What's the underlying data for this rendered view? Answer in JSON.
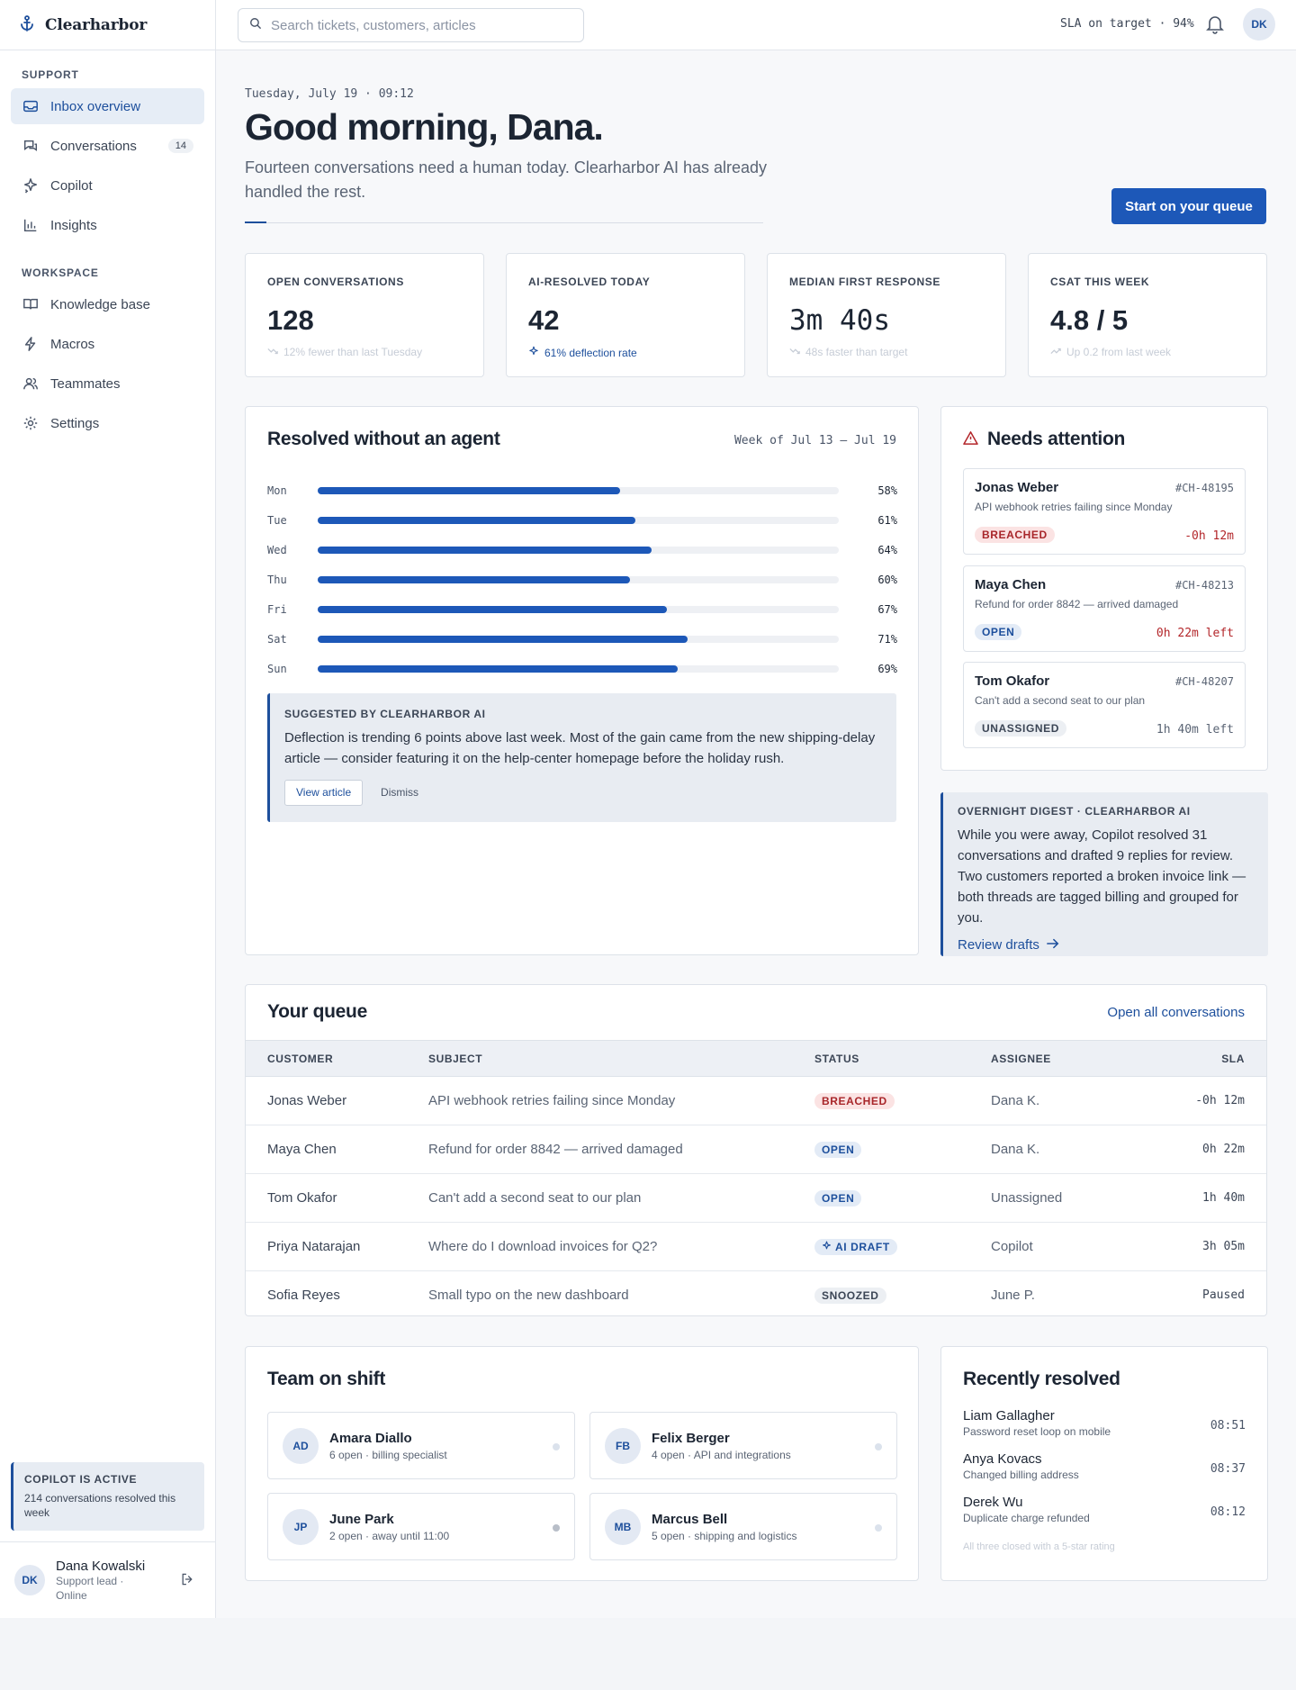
{
  "brand": {
    "name": "Clearharbor",
    "logo_icon": "anchor-icon"
  },
  "sidebar": {
    "support_heading": "SUPPORT",
    "support_items": [
      {
        "label": "Inbox overview",
        "icon": "inbox-icon",
        "active": true
      },
      {
        "label": "Conversations",
        "icon": "chat-icon",
        "badge": "14"
      },
      {
        "label": "Copilot",
        "icon": "sparkle-icon"
      },
      {
        "label": "Insights",
        "icon": "bar-chart-icon"
      }
    ],
    "workspace_heading": "WORKSPACE",
    "workspace_items": [
      {
        "label": "Knowledge base",
        "icon": "book-icon"
      },
      {
        "label": "Macros",
        "icon": "bolt-icon"
      },
      {
        "label": "Teammates",
        "icon": "users-icon"
      },
      {
        "label": "Settings",
        "icon": "gear-icon"
      }
    ],
    "copilot_card": {
      "title": "COPILOT IS ACTIVE",
      "desc": "214 conversations resolved this week"
    },
    "user": {
      "initials": "DK",
      "name": "Dana Kowalski",
      "role": "Support lead ·",
      "status": "Online"
    }
  },
  "topbar": {
    "search_placeholder": "Search tickets, customers, articles",
    "sla": "SLA on target · 94%",
    "avatar_initials": "DK"
  },
  "hero": {
    "date": "Tuesday, July 19 · 09:12",
    "greeting": "Good morning, Dana.",
    "subtitle": "Fourteen conversations need a human today. Clearharbor AI has already handled the rest.",
    "cta": "Start on your queue"
  },
  "kpis": [
    {
      "label": "OPEN CONVERSATIONS",
      "value": "128",
      "sub": "12% fewer than last Tuesday",
      "mono": false,
      "accent": false,
      "icon": "trend-down-icon"
    },
    {
      "label": "AI-RESOLVED TODAY",
      "value": "42",
      "sub": "61% deflection rate",
      "mono": false,
      "accent": true,
      "icon": "sparkle-icon"
    },
    {
      "label": "MEDIAN FIRST RESPONSE",
      "value": "3m 40s",
      "sub": "48s faster than target",
      "mono": true,
      "accent": false,
      "icon": "trend-down-icon"
    },
    {
      "label": "CSAT THIS WEEK",
      "value": "4.8 / 5",
      "sub": "Up 0.2 from last week",
      "mono": false,
      "accent": false,
      "icon": "trend-up-icon"
    }
  ],
  "resolved_panel": {
    "title": "Resolved without an agent",
    "range": "Week of Jul 13 – Jul 19",
    "suggestion": {
      "title": "SUGGESTED BY CLEARHARBOR AI",
      "text": "Deflection is trending 6 points above last week. Most of the gain came from the new shipping-delay article — consider featuring it on the help-center homepage before the holiday rush.",
      "primary": "View article",
      "secondary": "Dismiss"
    }
  },
  "chart_data": {
    "type": "bar",
    "orientation": "horizontal",
    "categories": [
      "Mon",
      "Tue",
      "Wed",
      "Thu",
      "Fri",
      "Sat",
      "Sun"
    ],
    "values": [
      58,
      61,
      64,
      60,
      67,
      71,
      69
    ],
    "value_labels": [
      "58%",
      "61%",
      "64%",
      "60%",
      "67%",
      "71%",
      "69%"
    ],
    "xlim": [
      0,
      100
    ],
    "color": "#1d58b8"
  },
  "attention": {
    "title": "Needs attention",
    "icon": "warning-icon",
    "items": [
      {
        "name": "Jonas Weber",
        "id": "#CH-48195",
        "desc": "API webhook retries failing since Monday",
        "status": "BREACHED",
        "tone": "red",
        "time": "-0h 12m",
        "time_tone": "red"
      },
      {
        "name": "Maya Chen",
        "id": "#CH-48213",
        "desc": "Refund for order 8842 — arrived damaged",
        "status": "OPEN",
        "tone": "blue",
        "time": "0h 22m left",
        "time_tone": "red"
      },
      {
        "name": "Tom Okafor",
        "id": "#CH-48207",
        "desc": "Can't add a second seat to our plan",
        "status": "UNASSIGNED",
        "tone": "gray",
        "time": "1h 40m left",
        "time_tone": "gray"
      }
    ]
  },
  "digest": {
    "title": "OVERNIGHT DIGEST · CLEARHARBOR AI",
    "text": "While you were away, Copilot resolved 31 conversations and drafted 9 replies for review. Two customers reported a broken invoice link — both threads are tagged billing and grouped for you.",
    "link": "Review drafts"
  },
  "queue": {
    "title": "Your queue",
    "link": "Open all conversations",
    "headers": [
      "CUSTOMER",
      "SUBJECT",
      "STATUS",
      "ASSIGNEE",
      "SLA"
    ],
    "rows": [
      {
        "customer": "Jonas Weber",
        "subject": "API webhook retries failing since Monday",
        "status": "BREACHED",
        "tone": "red",
        "assignee": "Dana K.",
        "sla": "-0h 12m",
        "sla_tone": "red"
      },
      {
        "customer": "Maya Chen",
        "subject": "Refund for order 8842 — arrived damaged",
        "status": "OPEN",
        "tone": "blue",
        "assignee": "Dana K.",
        "sla": "0h 22m",
        "sla_tone": "red"
      },
      {
        "customer": "Tom Okafor",
        "subject": "Can't add a second seat to our plan",
        "status": "OPEN",
        "tone": "blue",
        "assignee": "Unassigned",
        "sla": "1h 40m",
        "sla_tone": "gray"
      },
      {
        "customer": "Priya Natarajan",
        "subject": "Where do I download invoices for Q2?",
        "status": "AI DRAFT",
        "tone": "blue",
        "assignee": "Copilot",
        "sla": "3h 05m",
        "sla_tone": "gray"
      },
      {
        "customer": "Sofia Reyes",
        "subject": "Small typo on the new dashboard",
        "status": "SNOOZED",
        "tone": "gray",
        "assignee": "June P.",
        "sla": "Paused",
        "sla_tone": "gray"
      }
    ]
  },
  "team": {
    "title": "Team on shift",
    "members": [
      {
        "initials": "AD",
        "name": "Amara Diallo",
        "desc": "6 open · billing specialist",
        "away": false
      },
      {
        "initials": "FB",
        "name": "Felix Berger",
        "desc": "4 open · API and integrations",
        "away": false
      },
      {
        "initials": "JP",
        "name": "June Park",
        "desc": "2 open · away until 11:00",
        "away": true
      },
      {
        "initials": "MB",
        "name": "Marcus Bell",
        "desc": "5 open · shipping and logistics",
        "away": false
      }
    ]
  },
  "recent": {
    "title": "Recently resolved",
    "items": [
      {
        "name": "Liam Gallagher",
        "desc": "Password reset loop on mobile",
        "time": "08:51"
      },
      {
        "name": "Anya Kovacs",
        "desc": "Changed billing address",
        "time": "08:37"
      },
      {
        "name": "Derek Wu",
        "desc": "Duplicate charge refunded",
        "time": "08:12"
      }
    ],
    "footnote": "All three closed with a 5-star rating"
  }
}
